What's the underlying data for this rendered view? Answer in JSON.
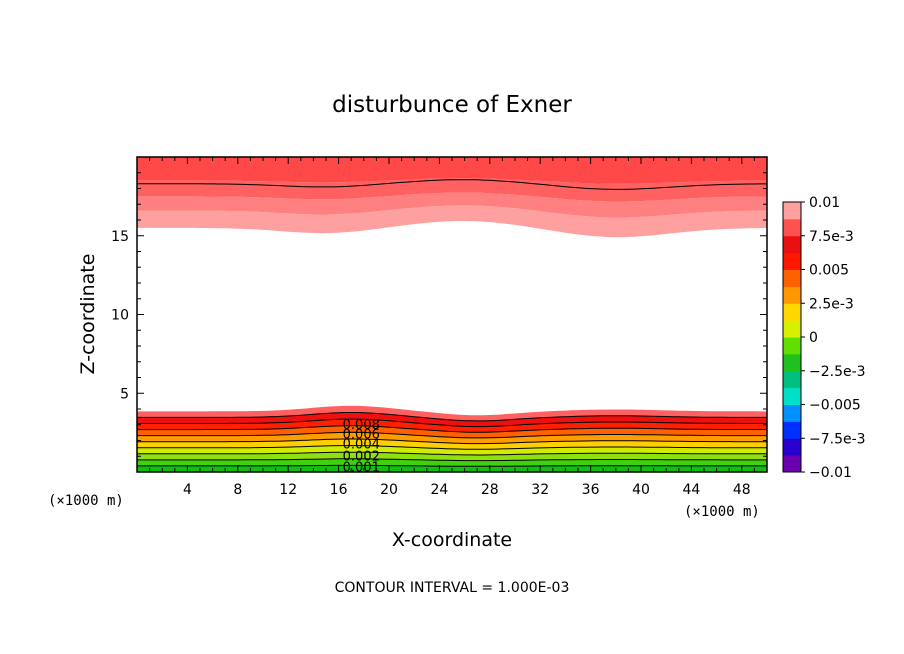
{
  "chart_data": {
    "type": "contour",
    "title": "disturbunce of Exner",
    "xlabel": "X-coordinate",
    "ylabel": "Z-coordinate",
    "x_unit": "(×1000 m)",
    "y_unit": "(×1000 m)",
    "xlim": [
      0,
      50
    ],
    "ylim": [
      0,
      20
    ],
    "xticks": [
      4,
      8,
      12,
      16,
      20,
      24,
      28,
      32,
      36,
      40,
      44,
      48
    ],
    "yticks": [
      5,
      10,
      15
    ],
    "contour_interval_note": "CONTOUR INTERVAL = 1.000E-03",
    "contour_labels": [
      "0.008",
      "0.006",
      "0.004",
      "0.002",
      "0.001"
    ],
    "colorbar": {
      "min": -0.01,
      "max": 0.01,
      "tick_labels": [
        "0.01",
        "7.5e-3",
        "0.005",
        "2.5e-3",
        "0",
        "−2.5e-3",
        "−0.005",
        "−7.5e-3",
        "−0.01"
      ],
      "colors": [
        "#6a00b0",
        "#2a00d0",
        "#0030ff",
        "#0090ff",
        "#00e0c8",
        "#00c080",
        "#20c020",
        "#60e000",
        "#d8f000",
        "#ffd800",
        "#ff9800",
        "#ff6000",
        "#ff1800",
        "#e81010",
        "#ff5050",
        "#ffa0a0"
      ]
    },
    "lower_region": {
      "description_levels": [
        0.0,
        0.001,
        0.002,
        0.003,
        0.004,
        0.005,
        0.006,
        0.007,
        0.008,
        0.009
      ],
      "fills": [
        "#10c010",
        "#40d010",
        "#90e010",
        "#d0ec00",
        "#ffd000",
        "#ff9c00",
        "#ff6000",
        "#ff2000",
        "#ee1010",
        "#ff6060"
      ]
    },
    "upper_region": {
      "fills": [
        "#ffa0a0",
        "#ff8080",
        "#ff6060",
        "#ff4848"
      ]
    }
  }
}
